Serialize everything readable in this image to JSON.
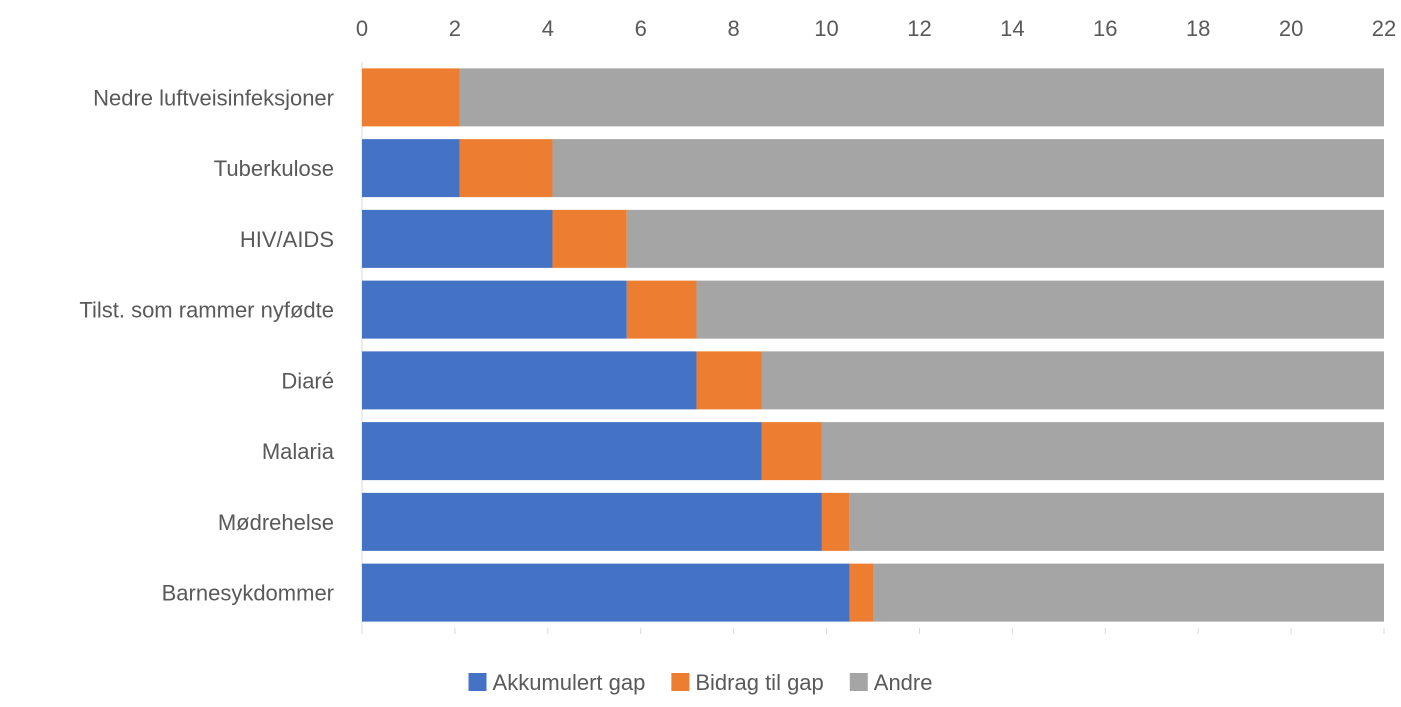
{
  "chart_data": {
    "type": "bar",
    "orientation": "horizontal",
    "stacked": true,
    "categories": [
      "Nedre luftveisinfeksjoner",
      "Tuberkulose",
      "HIV/AIDS",
      "Tilst. som rammer nyfødte",
      "Diaré",
      "Malaria",
      "Mødrehelse",
      "Barnesykdommer"
    ],
    "series": [
      {
        "name": "Akkumulert gap",
        "color": "#4472C4",
        "values": [
          0,
          2.1,
          4.1,
          5.7,
          7.2,
          8.6,
          9.9,
          10.5
        ]
      },
      {
        "name": "Bidrag til gap",
        "color": "#ED7D31",
        "values": [
          2.1,
          2.0,
          1.6,
          1.5,
          1.4,
          1.3,
          0.6,
          0.5
        ]
      },
      {
        "name": "Andre",
        "color": "#A5A5A5",
        "values": [
          19.9,
          17.9,
          16.3,
          14.8,
          13.4,
          12.1,
          11.5,
          11.0
        ]
      }
    ],
    "x_ticks": [
      "0",
      "2",
      "4",
      "6",
      "8",
      "10",
      "12",
      "14",
      "16",
      "18",
      "20",
      "22"
    ],
    "xlim": [
      0,
      22
    ],
    "x_axis_position": "top",
    "title": "",
    "xlabel": "",
    "ylabel": "",
    "grid": false,
    "legend_position": "bottom"
  }
}
